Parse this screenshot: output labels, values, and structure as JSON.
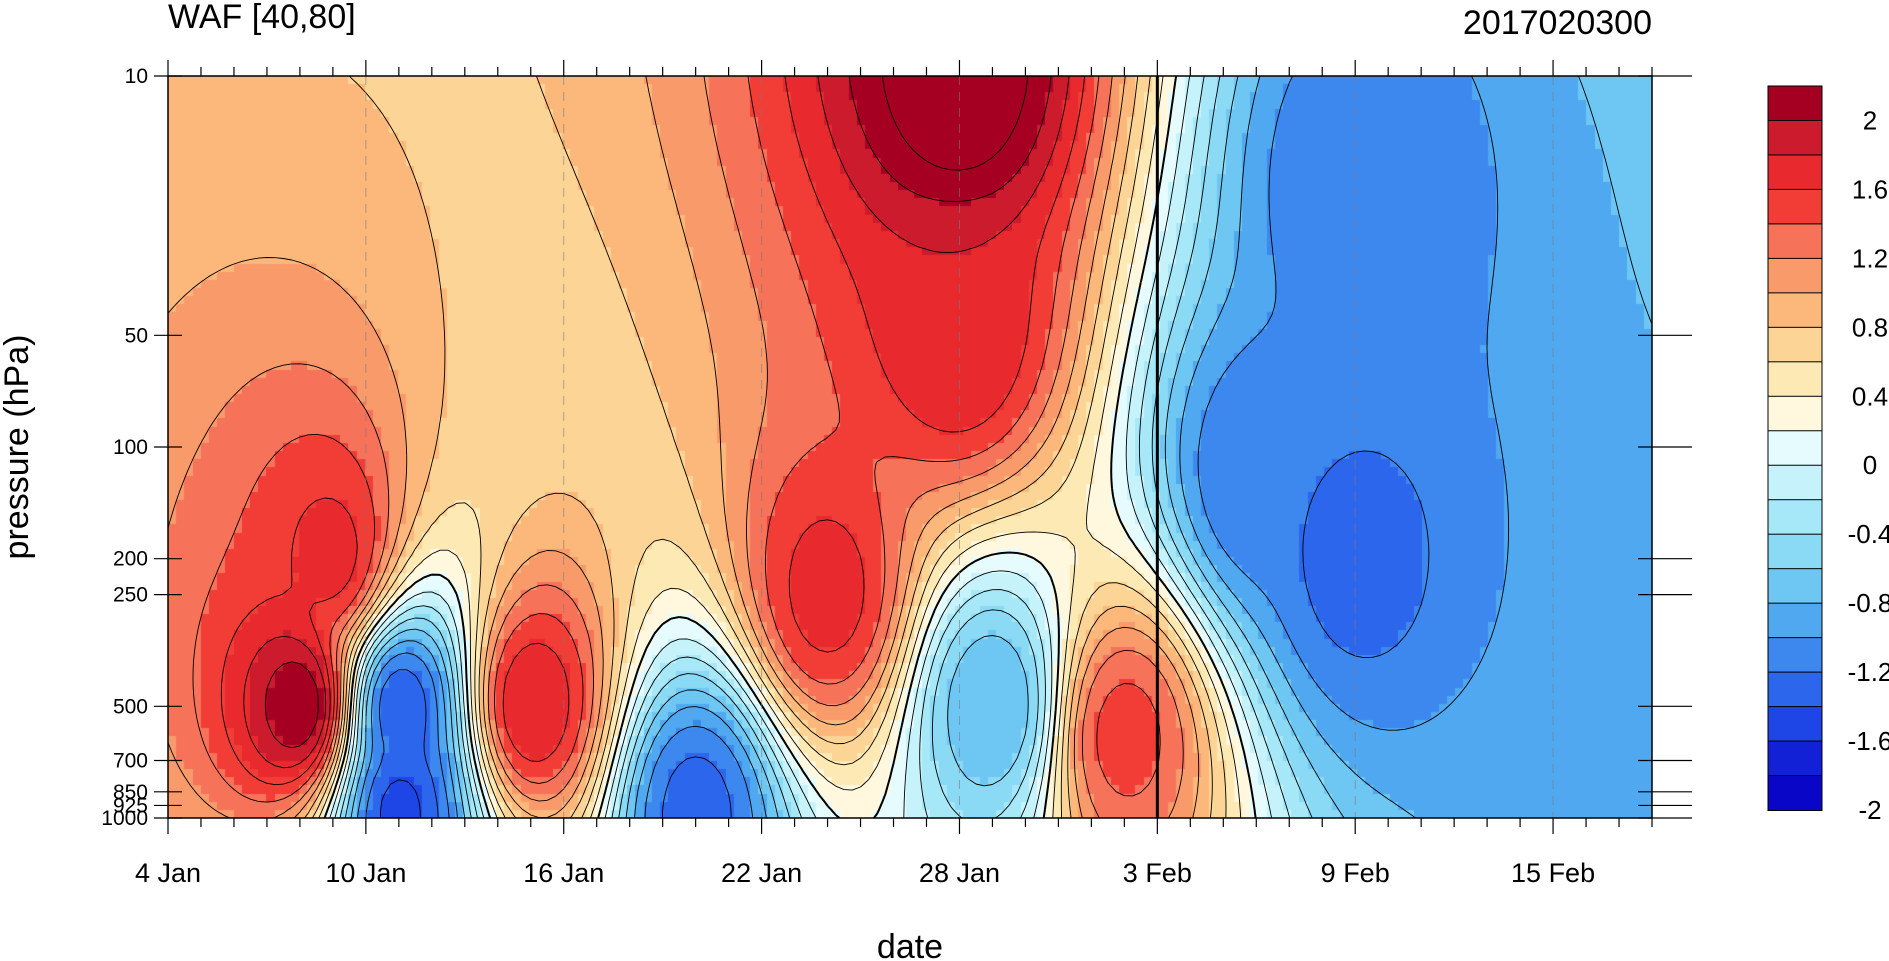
{
  "chart_data": {
    "type": "heatmap",
    "subtype": "filled-contour (time-pressure section)",
    "title": "WAF [40,80]",
    "right_title": "2017020300",
    "xlabel": "date",
    "ylabel": "pressure (hPa)",
    "x_range": [
      "2017-01-04",
      "2017-02-18"
    ],
    "x_ticks": [
      "4 Jan",
      "10 Jan",
      "16 Jan",
      "22 Jan",
      "28 Jan",
      "3 Feb",
      "9 Feb",
      "15 Feb"
    ],
    "y_scale": "log (inverted)",
    "y_range": [
      1000,
      10
    ],
    "y_ticks": [
      "10",
      "50",
      "100",
      "200",
      "250",
      "500",
      "700",
      "850",
      "925",
      "1000"
    ],
    "vertical_marker": "2017-02-03",
    "colorbar": {
      "levels": [
        "2",
        "1.6",
        "1.2",
        "0.8",
        "0.4",
        "0",
        "-0.4",
        "-0.8",
        "-1.2",
        "-1.6",
        "-2"
      ],
      "contour_interval": 0.2,
      "colors": [
        "#a50022",
        "#cc1b2d",
        "#e82a2e",
        "#f23c36",
        "#f6735a",
        "#f99a6b",
        "#fbb87a",
        "#fcd495",
        "#fde9b3",
        "#fff7de",
        "#e6fbfe",
        "#c6f3fb",
        "#a6e8f8",
        "#8ad9f5",
        "#6ec7f3",
        "#4fa8f0",
        "#3c88ee",
        "#2c66ec",
        "#1e45e6",
        "#1221d6",
        "#0a06c8"
      ]
    },
    "series": [
      {
        "x": "2017-01-08",
        "pressure": 500,
        "value": 2.0
      },
      {
        "x": "2017-01-09",
        "pressure": 200,
        "value": 1.5
      },
      {
        "x": "2017-01-11",
        "pressure": 500,
        "value": -1.6
      },
      {
        "x": "2017-01-11",
        "pressure": 950,
        "value": -1.7
      },
      {
        "x": "2017-01-15",
        "pressure": 500,
        "value": 1.6
      },
      {
        "x": "2017-01-20",
        "pressure": 950,
        "value": -1.5
      },
      {
        "x": "2017-01-24",
        "pressure": 250,
        "value": 1.5
      },
      {
        "x": "2017-01-28",
        "pressure": 10,
        "value": 2.2
      },
      {
        "x": "2017-01-28",
        "pressure": 50,
        "value": 1.6
      },
      {
        "x": "2017-01-29",
        "pressure": 500,
        "value": -1.0
      },
      {
        "x": "2017-02-02",
        "pressure": 600,
        "value": 1.3
      },
      {
        "x": "2017-02-06",
        "pressure": 120,
        "value": -1.4
      },
      {
        "x": "2017-02-09",
        "pressure": 20,
        "value": -1.4
      },
      {
        "x": "2017-02-09",
        "pressure": 200,
        "value": -1.5
      },
      {
        "x": "2017-02-17",
        "pressure": 900,
        "value": -1.2
      }
    ]
  }
}
